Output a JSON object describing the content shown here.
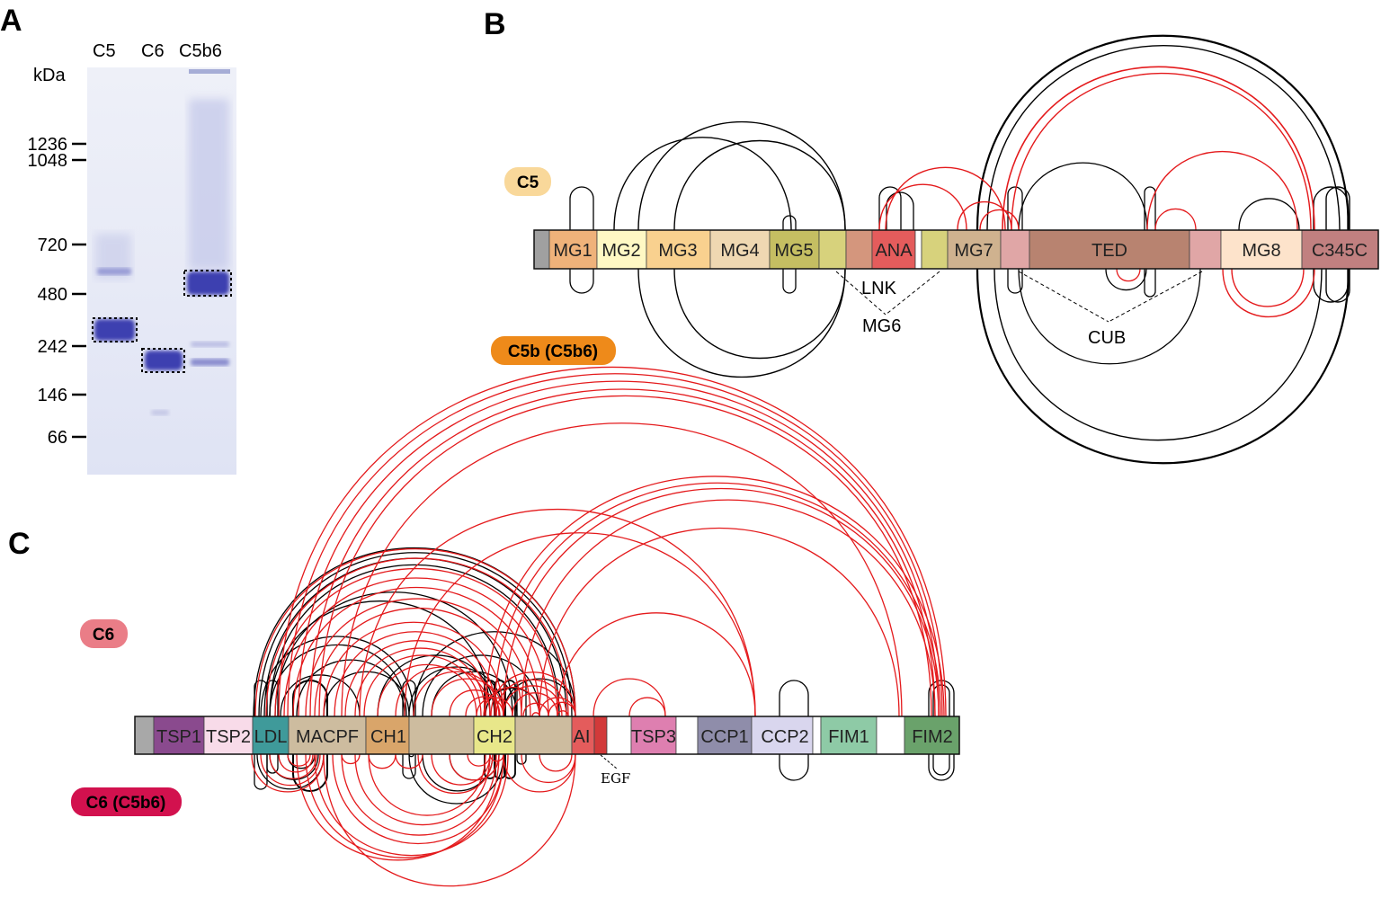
{
  "panelA": {
    "letter": "A",
    "lanes": [
      "C5",
      "C6",
      "C5b6"
    ],
    "unit": "kDa",
    "markers": [
      "1236",
      "1048",
      "720",
      "480",
      "242",
      "146",
      "66"
    ]
  },
  "panelB": {
    "letter": "B",
    "badge_top": "C5",
    "badge_bottom": "C5b (C5b6)",
    "domains": [
      "MG1",
      "MG2",
      "MG3",
      "MG4",
      "MG5",
      "",
      "",
      "ANA",
      "",
      "MG7",
      "",
      "TED",
      "",
      "MG8",
      "C345C"
    ],
    "annotations": {
      "lnk": "LNK",
      "mg6": "MG6",
      "cub": "CUB"
    },
    "colors": {
      "intra": "#000000",
      "inter": "#e41a1c"
    }
  },
  "panelC": {
    "letter": "C",
    "badge_top": "C6",
    "badge_bottom": "C6 (C5b6)",
    "domains": [
      "",
      "TSP1",
      "TSP2",
      "LDL",
      "MACPF",
      "CH1",
      "",
      "CH2",
      "",
      "AI",
      "",
      "",
      "TSP3",
      "",
      "CCP1",
      "CCP2",
      "",
      "FIM1",
      "",
      "FIM2"
    ],
    "annotations": {
      "egf": "EGF"
    },
    "colors": {
      "intra": "#000000",
      "inter": "#e41a1c"
    }
  }
}
